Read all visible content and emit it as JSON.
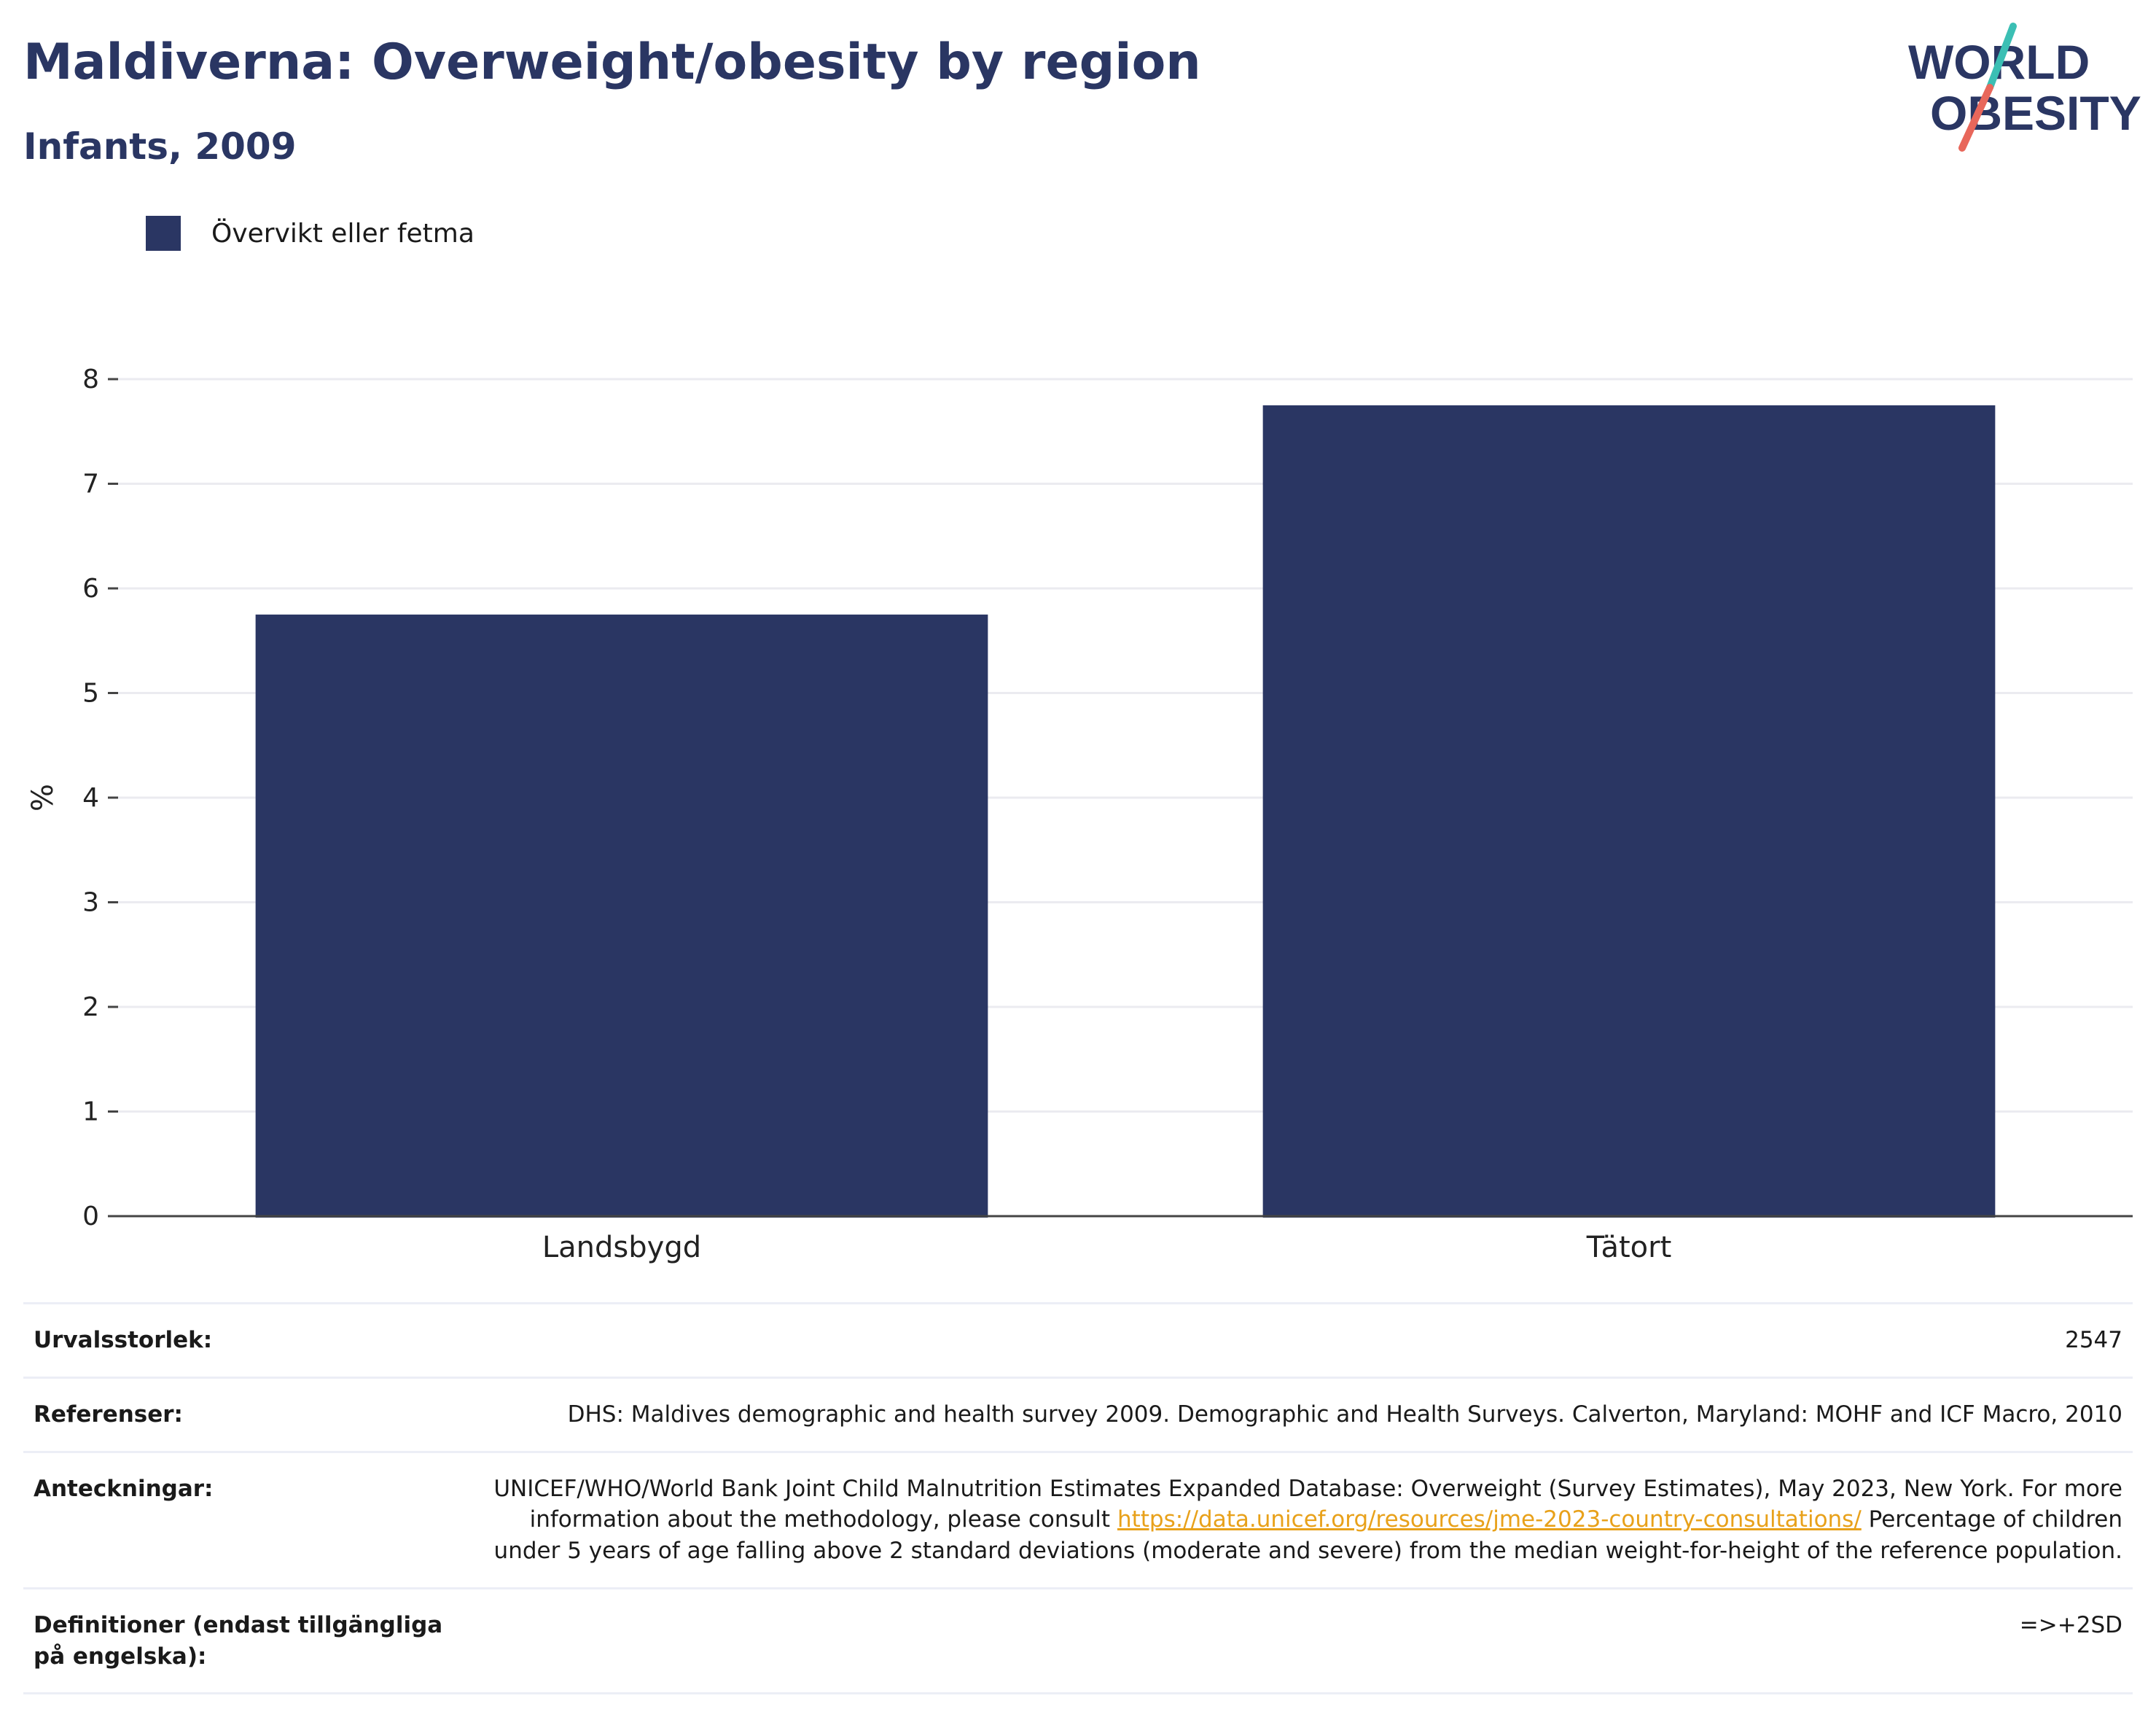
{
  "header": {
    "title": "Maldiverna: Overweight/obesity by region",
    "subtitle": "Infants, 2009"
  },
  "logo": {
    "line1": "WORLD",
    "line2": "OBESITY"
  },
  "legend": {
    "label": "Övervikt eller fetma"
  },
  "colors": {
    "bar": "#2a3663",
    "title": "#2a3663",
    "logo_teal": "#3bbfb4",
    "logo_coral": "#e8675b",
    "link": "#e8a11a",
    "grid": "#ebebf0"
  },
  "chart_data": {
    "type": "bar",
    "categories": [
      "Landsbygd",
      "Tätort"
    ],
    "series": [
      {
        "name": "Övervikt eller fetma",
        "values": [
          5.75,
          7.75
        ]
      }
    ],
    "ylabel": "%",
    "ylim": [
      0,
      8
    ],
    "yticks": [
      "0",
      "1",
      "2",
      "3",
      "4",
      "5",
      "6",
      "7",
      "8"
    ],
    "grid": true,
    "legend_position": "top-left"
  },
  "meta": {
    "sample_size": {
      "label": "Urvalsstorlek:",
      "value": "2547"
    },
    "references": {
      "label": "Referenser:",
      "value": "DHS: Maldives demographic and health survey 2009. Demographic and Health Surveys. Calverton, Maryland: MOHF and ICF Macro, 2010"
    },
    "notes": {
      "label": "Anteckningar:",
      "text1": "UNICEF/WHO/World Bank Joint Child Malnutrition Estimates Expanded Database: Overweight (Survey Estimates), May 2023, New York. For more information about the methodology, please consult ",
      "link": "https://data.unicef.org/resources/jme-2023-country-consultations/",
      "text2": " Percentage of children under 5 years of age falling above 2 standard deviations (moderate and severe) from the median weight-for-height of the reference population."
    },
    "definitions": {
      "label": "Definitioner (endast tillgängliga på engelska):",
      "value": "=>+2SD"
    }
  }
}
